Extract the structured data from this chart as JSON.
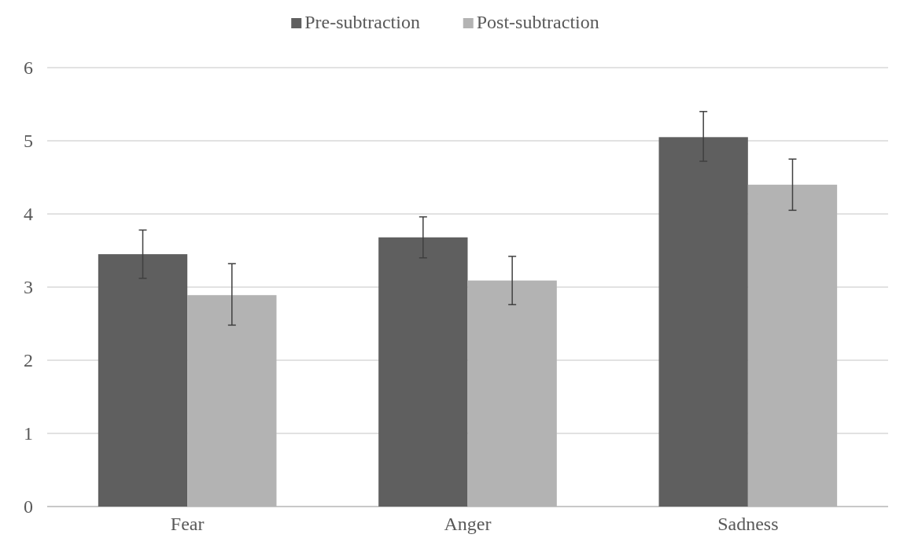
{
  "chart_data": {
    "type": "bar",
    "categories": [
      "Fear",
      "Anger",
      "Sadness"
    ],
    "series": [
      {
        "name": "Pre-subtraction",
        "color": "#5f5f5f",
        "values": [
          3.45,
          3.68,
          5.05
        ],
        "errors": [
          [
            3.12,
            3.78
          ],
          [
            3.4,
            3.96
          ],
          [
            4.72,
            5.4
          ]
        ]
      },
      {
        "name": "Post-subtraction",
        "color": "#b3b3b3",
        "values": [
          2.89,
          3.09,
          4.4
        ],
        "errors": [
          [
            2.48,
            3.32
          ],
          [
            2.76,
            3.42
          ],
          [
            4.05,
            4.75
          ]
        ]
      }
    ],
    "ylim": [
      0,
      6
    ],
    "yticks": [
      0,
      1,
      2,
      3,
      4,
      5,
      6
    ],
    "grid": "y",
    "legend": "top"
  }
}
